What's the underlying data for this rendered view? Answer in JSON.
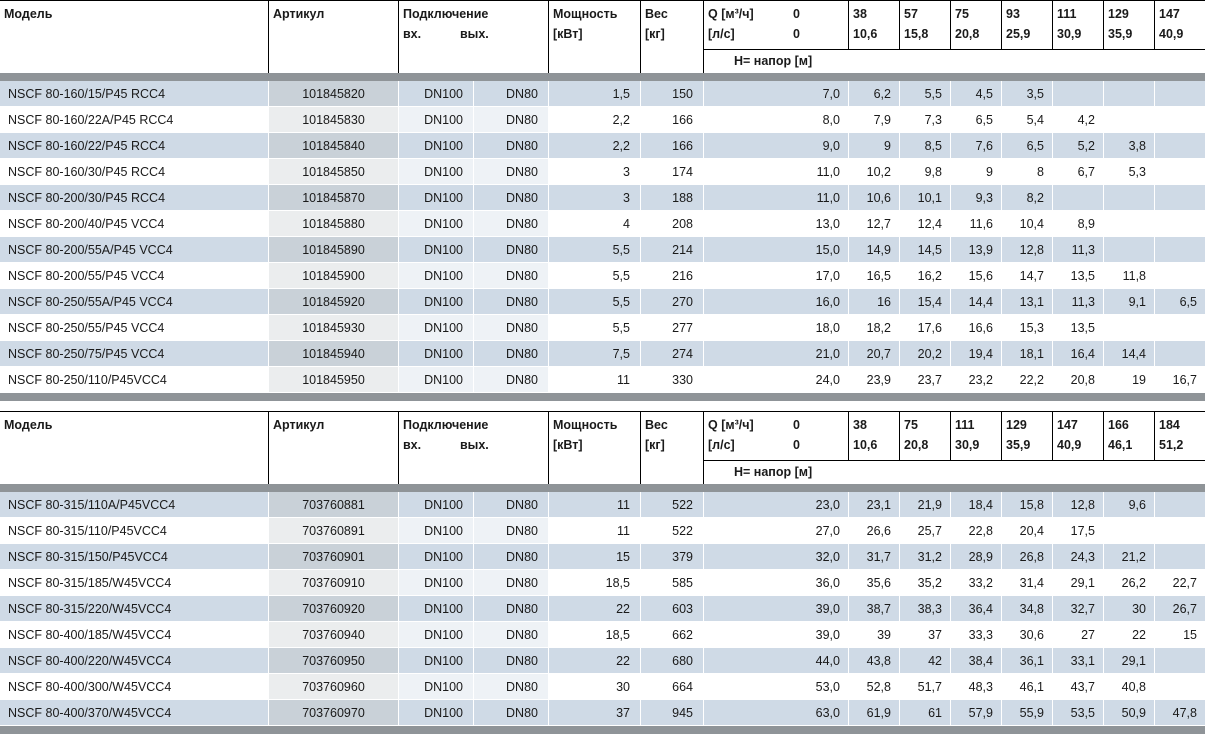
{
  "colors": {
    "stripe_blue": "#cfdae6",
    "article_tint_striped": "#c9d1d8",
    "article_tint_plain": "#ebedee",
    "separator_band": "#8f9498",
    "header_line": "#000000",
    "text": "#1a1a1a"
  },
  "tables": [
    {
      "header": {
        "model": "Модель",
        "article": "Артикул",
        "connection": "Подключение",
        "conn_in": "вх.",
        "conn_out": "вых.",
        "power_1": "Мощность",
        "power_2": "[кВт]",
        "weight_1": "Вес",
        "weight_2": "[кг]",
        "q_unit_top": "Q [м³/ч]",
        "q_unit_bottom": "[л/с]",
        "q_zero": "0",
        "head_caption": "Н= напор [м]",
        "q_cols": [
          {
            "m3h": "38",
            "ls": "10,6"
          },
          {
            "m3h": "57",
            "ls": "15,8"
          },
          {
            "m3h": "75",
            "ls": "20,8"
          },
          {
            "m3h": "93",
            "ls": "25,9"
          },
          {
            "m3h": "111",
            "ls": "30,9"
          },
          {
            "m3h": "129",
            "ls": "35,9"
          },
          {
            "m3h": "147",
            "ls": "40,9"
          }
        ]
      },
      "rows": [
        {
          "model": "NSCF 80-160/15/P45 RCC4",
          "article": "101845820",
          "dn_in": "DN100",
          "dn_out": "DN80",
          "power": "1,5",
          "weight": "150",
          "heads": [
            "7,0",
            "6,2",
            "5,5",
            "4,5",
            "3,5",
            "",
            "",
            ""
          ]
        },
        {
          "model": "NSCF 80-160/22A/P45 RCC4",
          "article": "101845830",
          "dn_in": "DN100",
          "dn_out": "DN80",
          "power": "2,2",
          "weight": "166",
          "heads": [
            "8,0",
            "7,9",
            "7,3",
            "6,5",
            "5,4",
            "4,2",
            "",
            ""
          ]
        },
        {
          "model": "NSCF 80-160/22/P45 RCC4",
          "article": "101845840",
          "dn_in": "DN100",
          "dn_out": "DN80",
          "power": "2,2",
          "weight": "166",
          "heads": [
            "9,0",
            "9",
            "8,5",
            "7,6",
            "6,5",
            "5,2",
            "3,8",
            ""
          ]
        },
        {
          "model": "NSCF 80-160/30/P45 RCC4",
          "article": "101845850",
          "dn_in": "DN100",
          "dn_out": "DN80",
          "power": "3",
          "weight": "174",
          "heads": [
            "11,0",
            "10,2",
            "9,8",
            "9",
            "8",
            "6,7",
            "5,3",
            ""
          ]
        },
        {
          "model": "NSCF 80-200/30/P45 RCC4",
          "article": "101845870",
          "dn_in": "DN100",
          "dn_out": "DN80",
          "power": "3",
          "weight": "188",
          "heads": [
            "11,0",
            "10,6",
            "10,1",
            "9,3",
            "8,2",
            "",
            "",
            ""
          ]
        },
        {
          "model": "NSCF 80-200/40/P45 VCC4",
          "article": "101845880",
          "dn_in": "DN100",
          "dn_out": "DN80",
          "power": "4",
          "weight": "208",
          "heads": [
            "13,0",
            "12,7",
            "12,4",
            "11,6",
            "10,4",
            "8,9",
            "",
            ""
          ]
        },
        {
          "model": "NSCF 80-200/55A/P45 VCC4",
          "article": "101845890",
          "dn_in": "DN100",
          "dn_out": "DN80",
          "power": "5,5",
          "weight": "214",
          "heads": [
            "15,0",
            "14,9",
            "14,5",
            "13,9",
            "12,8",
            "11,3",
            "",
            ""
          ]
        },
        {
          "model": "NSCF 80-200/55/P45 VCC4",
          "article": "101845900",
          "dn_in": "DN100",
          "dn_out": "DN80",
          "power": "5,5",
          "weight": "216",
          "heads": [
            "17,0",
            "16,5",
            "16,2",
            "15,6",
            "14,7",
            "13,5",
            "11,8",
            ""
          ]
        },
        {
          "model": "NSCF 80-250/55A/P45 VCC4",
          "article": "101845920",
          "dn_in": "DN100",
          "dn_out": "DN80",
          "power": "5,5",
          "weight": "270",
          "heads": [
            "16,0",
            "16",
            "15,4",
            "14,4",
            "13,1",
            "11,3",
            "9,1",
            "6,5"
          ]
        },
        {
          "model": "NSCF 80-250/55/P45 VCC4",
          "article": "101845930",
          "dn_in": "DN100",
          "dn_out": "DN80",
          "power": "5,5",
          "weight": "277",
          "heads": [
            "18,0",
            "18,2",
            "17,6",
            "16,6",
            "15,3",
            "13,5",
            "",
            ""
          ]
        },
        {
          "model": "NSCF 80-250/75/P45 VCC4",
          "article": "101845940",
          "dn_in": "DN100",
          "dn_out": "DN80",
          "power": "7,5",
          "weight": "274",
          "heads": [
            "21,0",
            "20,7",
            "20,2",
            "19,4",
            "18,1",
            "16,4",
            "14,4",
            ""
          ]
        },
        {
          "model": "NSCF 80-250/110/P45VCC4",
          "article": "101845950",
          "dn_in": "DN100",
          "dn_out": "DN80",
          "power": "11",
          "weight": "330",
          "heads": [
            "24,0",
            "23,9",
            "23,7",
            "23,2",
            "22,2",
            "20,8",
            "19",
            "16,7"
          ]
        }
      ]
    },
    {
      "header": {
        "model": "Модель",
        "article": "Артикул",
        "connection": "Подключение",
        "conn_in": "вх.",
        "conn_out": "вых.",
        "power_1": "Мощность",
        "power_2": "[кВт]",
        "weight_1": "Вес",
        "weight_2": "[кг]",
        "q_unit_top": "Q [м³/ч]",
        "q_unit_bottom": "[л/с]",
        "q_zero": "0",
        "head_caption": "Н= напор [м]",
        "q_cols": [
          {
            "m3h": "38",
            "ls": "10,6"
          },
          {
            "m3h": "75",
            "ls": "20,8"
          },
          {
            "m3h": "111",
            "ls": "30,9"
          },
          {
            "m3h": "129",
            "ls": "35,9"
          },
          {
            "m3h": "147",
            "ls": "40,9"
          },
          {
            "m3h": "166",
            "ls": "46,1"
          },
          {
            "m3h": "184",
            "ls": "51,2"
          }
        ]
      },
      "rows": [
        {
          "model": "NSCF 80-315/110A/P45VCC4",
          "article": "703760881",
          "dn_in": "DN100",
          "dn_out": "DN80",
          "power": "11",
          "weight": "522",
          "heads": [
            "23,0",
            "23,1",
            "21,9",
            "18,4",
            "15,8",
            "12,8",
            "9,6",
            ""
          ]
        },
        {
          "model": "NSCF 80-315/110/P45VCC4",
          "article": "703760891",
          "dn_in": "DN100",
          "dn_out": "DN80",
          "power": "11",
          "weight": "522",
          "heads": [
            "27,0",
            "26,6",
            "25,7",
            "22,8",
            "20,4",
            "17,5",
            "",
            ""
          ]
        },
        {
          "model": "NSCF 80-315/150/P45VCC4",
          "article": "703760901",
          "dn_in": "DN100",
          "dn_out": "DN80",
          "power": "15",
          "weight": "379",
          "heads": [
            "32,0",
            "31,7",
            "31,2",
            "28,9",
            "26,8",
            "24,3",
            "21,2",
            ""
          ]
        },
        {
          "model": "NSCF 80-315/185/W45VCC4",
          "article": "703760910",
          "dn_in": "DN100",
          "dn_out": "DN80",
          "power": "18,5",
          "weight": "585",
          "heads": [
            "36,0",
            "35,6",
            "35,2",
            "33,2",
            "31,4",
            "29,1",
            "26,2",
            "22,7"
          ]
        },
        {
          "model": "NSCF 80-315/220/W45VCC4",
          "article": "703760920",
          "dn_in": "DN100",
          "dn_out": "DN80",
          "power": "22",
          "weight": "603",
          "heads": [
            "39,0",
            "38,7",
            "38,3",
            "36,4",
            "34,8",
            "32,7",
            "30",
            "26,7"
          ]
        },
        {
          "model": "NSCF 80-400/185/W45VCC4",
          "article": "703760940",
          "dn_in": "DN100",
          "dn_out": "DN80",
          "power": "18,5",
          "weight": "662",
          "heads": [
            "39,0",
            "39",
            "37",
            "33,3",
            "30,6",
            "27",
            "22",
            "15"
          ]
        },
        {
          "model": "NSCF 80-400/220/W45VCC4",
          "article": "703760950",
          "dn_in": "DN100",
          "dn_out": "DN80",
          "power": "22",
          "weight": "680",
          "heads": [
            "44,0",
            "43,8",
            "42",
            "38,4",
            "36,1",
            "33,1",
            "29,1",
            ""
          ]
        },
        {
          "model": "NSCF 80-400/300/W45VCC4",
          "article": "703760960",
          "dn_in": "DN100",
          "dn_out": "DN80",
          "power": "30",
          "weight": "664",
          "heads": [
            "53,0",
            "52,8",
            "51,7",
            "48,3",
            "46,1",
            "43,7",
            "40,8",
            ""
          ]
        },
        {
          "model": "NSCF 80-400/370/W45VCC4",
          "article": "703760970",
          "dn_in": "DN100",
          "dn_out": "DN80",
          "power": "37",
          "weight": "945",
          "heads": [
            "63,0",
            "61,9",
            "61",
            "57,9",
            "55,9",
            "53,5",
            "50,9",
            "47,8"
          ]
        }
      ]
    }
  ]
}
